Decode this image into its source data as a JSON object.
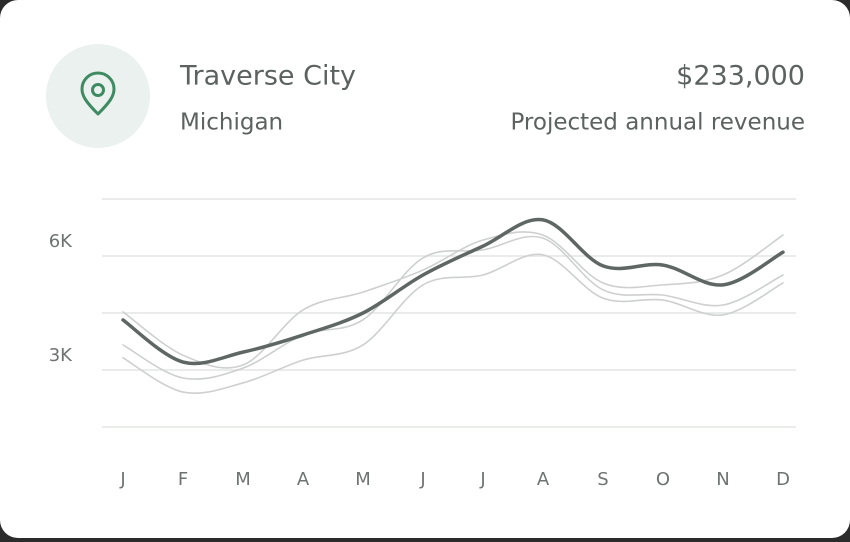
{
  "header": {
    "city": "Traverse City",
    "state": "Michigan",
    "revenue": "$233,000",
    "revenue_label": "Projected annual revenue"
  },
  "chart_data": {
    "type": "line",
    "categories": [
      "J",
      "F",
      "M",
      "A",
      "M",
      "J",
      "J",
      "A",
      "S",
      "O",
      "N",
      "D"
    ],
    "series": [
      {
        "color": "#cdd0cf",
        "values": [
          4530,
          3390,
          3130,
          4580,
          5050,
          5630,
          6420,
          6550,
          5290,
          5240,
          5500,
          6550
        ]
      },
      {
        "color": "#cdd0cf",
        "values": [
          3660,
          2790,
          3050,
          3920,
          4320,
          5950,
          6160,
          6470,
          5110,
          4970,
          4710,
          5500
        ]
      },
      {
        "color": "#cdd0cf",
        "values": [
          3320,
          2420,
          2660,
          3260,
          3660,
          5240,
          5500,
          6030,
          4890,
          4840,
          4450,
          5290
        ]
      },
      {
        "color": "#5f6764",
        "values": [
          4316,
          3210,
          3470,
          3920,
          4500,
          5500,
          6260,
          6950,
          5740,
          5760,
          5240,
          6100
        ]
      }
    ],
    "ylim": [
      1000,
      8000
    ],
    "yticks": [
      {
        "value": 6000,
        "label": "6K"
      },
      {
        "value": 3000,
        "label": "3K"
      }
    ],
    "gridlines": [
      7500,
      6000,
      4500,
      3000,
      1500
    ],
    "grid": true
  }
}
